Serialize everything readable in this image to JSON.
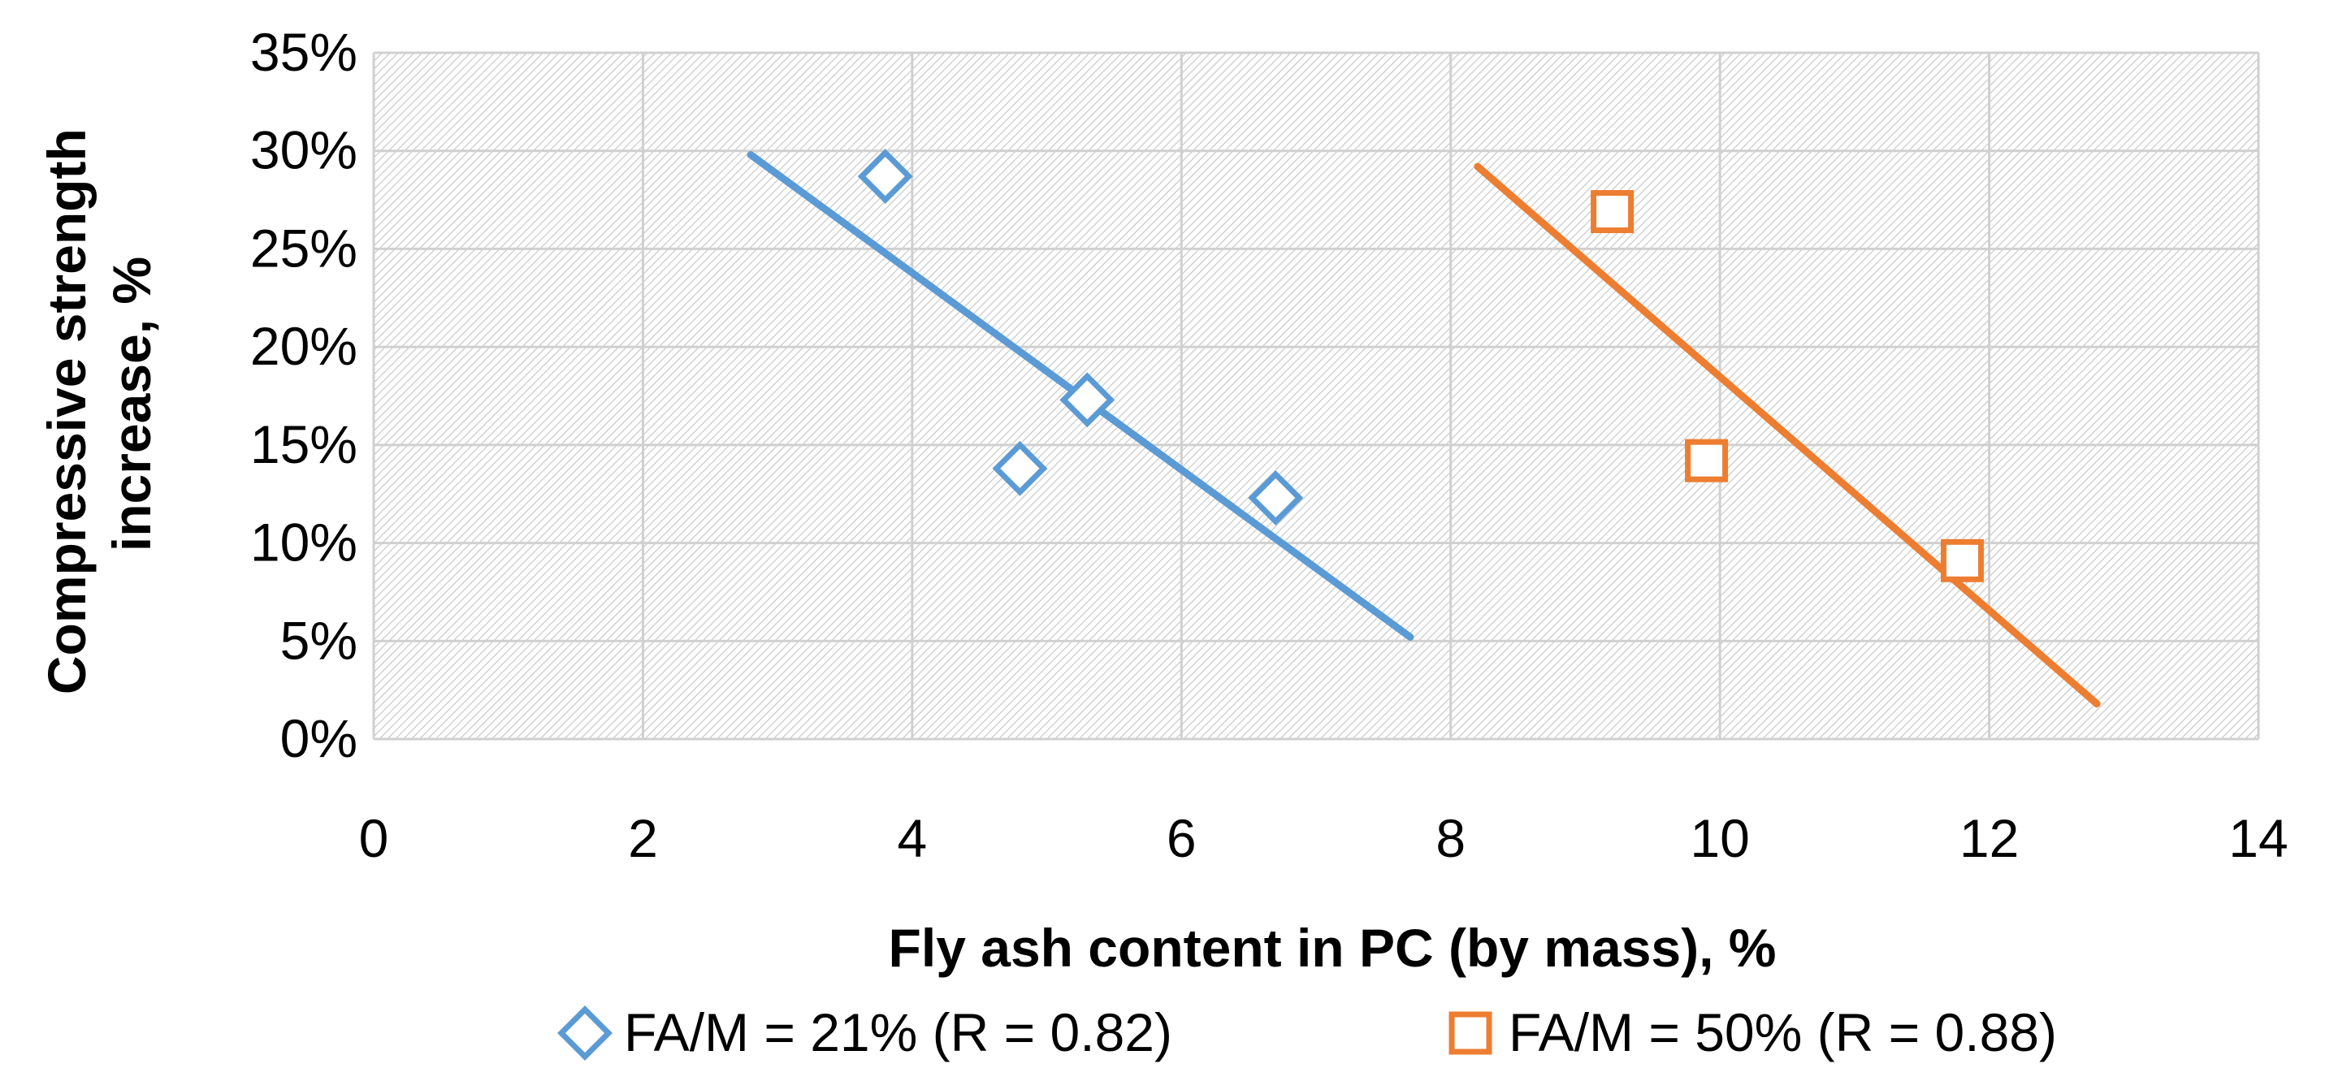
{
  "chart_data": {
    "type": "scatter",
    "title": "",
    "xlabel": "Fly ash content in PC (by mass), %",
    "ylabel_lines": [
      "Compressive strength",
      "increase, %"
    ],
    "xlim": [
      0,
      14
    ],
    "ylim": [
      0,
      35
    ],
    "x_ticks": [
      0,
      2,
      4,
      6,
      8,
      10,
      12,
      14
    ],
    "x_tick_labels": [
      "0",
      "2",
      "4",
      "6",
      "8",
      "10",
      "12",
      "14"
    ],
    "y_ticks": [
      0,
      5,
      10,
      15,
      20,
      25,
      30,
      35
    ],
    "y_tick_labels": [
      "0%",
      "5%",
      "10%",
      "15%",
      "20%",
      "25%",
      "30%",
      "35%"
    ],
    "grid": true,
    "legend_position": "bottom",
    "series": [
      {
        "name": "FA/M = 21% (R = 0.82)",
        "marker": "diamond",
        "color": "#5B9BD5",
        "points": [
          {
            "x": 3.8,
            "y": 28.7
          },
          {
            "x": 4.8,
            "y": 13.8
          },
          {
            "x": 5.3,
            "y": 17.3
          },
          {
            "x": 6.7,
            "y": 12.3
          }
        ],
        "trendline": [
          {
            "x": 2.8,
            "y": 29.8
          },
          {
            "x": 7.7,
            "y": 5.2
          }
        ]
      },
      {
        "name": "FA/M = 50% (R = 0.88)",
        "marker": "square",
        "color": "#ED7D31",
        "points": [
          {
            "x": 9.2,
            "y": 26.9
          },
          {
            "x": 9.9,
            "y": 14.2
          },
          {
            "x": 11.8,
            "y": 9.1
          }
        ],
        "trendline": [
          {
            "x": 8.2,
            "y": 29.2
          },
          {
            "x": 12.8,
            "y": 1.8
          }
        ]
      }
    ]
  }
}
